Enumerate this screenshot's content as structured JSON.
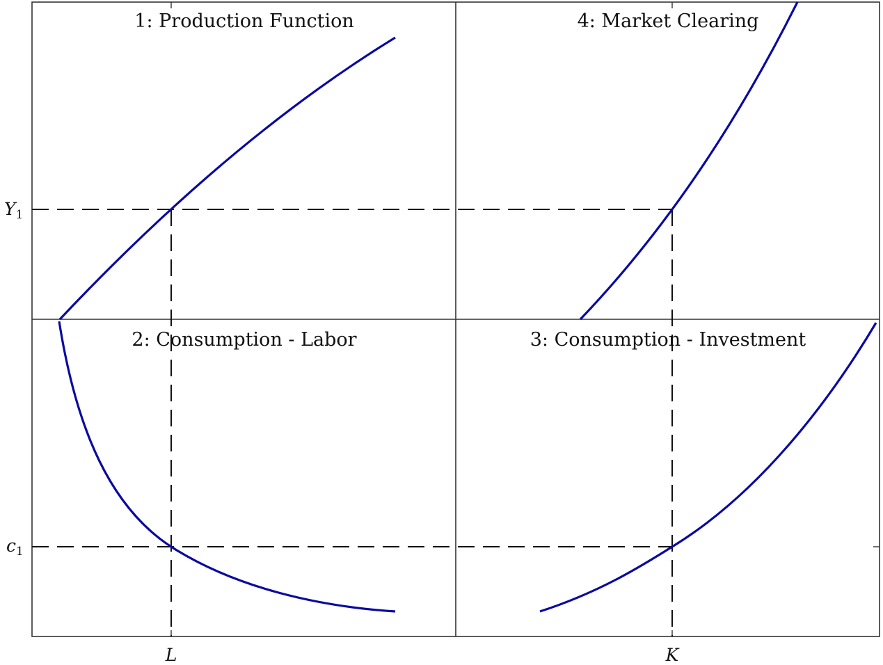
{
  "panels": {
    "top_left": {
      "title": "1: Production Function"
    },
    "top_right": {
      "title": "4: Market Clearing"
    },
    "bottom_left": {
      "title": "2: Consumption - Labor"
    },
    "bottom_right": {
      "title": "3: Consumption - Investment"
    }
  },
  "axis_labels": {
    "y1_main": "Y",
    "y1_sub": "1",
    "c1_main": "c",
    "c1_sub": "1",
    "L": "L",
    "K": "K"
  },
  "colors": {
    "curve": "#0a0aa0",
    "frame": "#333333",
    "guide": "#111111"
  }
}
